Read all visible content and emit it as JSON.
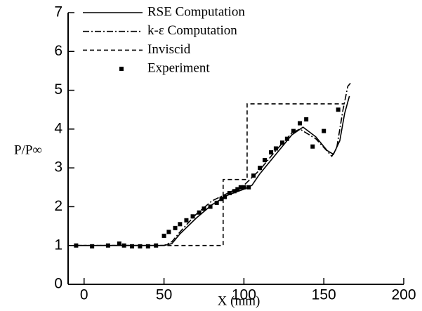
{
  "chart_data": {
    "type": "line",
    "xlabel": "X (mm)",
    "ylabel": "P/P∞",
    "xlim": [
      -10,
      200
    ],
    "xticks": [
      0,
      50,
      100,
      150,
      200
    ],
    "ylim": [
      0,
      7
    ],
    "yticks": [
      0,
      1,
      2,
      3,
      4,
      5,
      6,
      7
    ],
    "legend": "upper-left",
    "series": [
      {
        "name": "RSE Computation",
        "color": "#000000",
        "style": "solid",
        "x": [
          -5,
          50,
          55,
          60,
          70,
          80,
          90,
          100,
          105,
          110,
          120,
          130,
          137,
          145,
          152,
          156,
          160,
          163,
          166
        ],
        "values": [
          1,
          1,
          1.05,
          1.3,
          1.7,
          2.05,
          2.3,
          2.45,
          2.55,
          2.85,
          3.35,
          3.85,
          4.05,
          3.8,
          3.45,
          3.35,
          3.7,
          4.4,
          4.85
        ]
      },
      {
        "name": "k-ε Computation",
        "color": "#000000",
        "style": "dashdot",
        "x": [
          -5,
          50,
          55,
          60,
          70,
          80,
          90,
          100,
          110,
          120,
          130,
          135,
          145,
          155,
          158,
          162,
          165,
          167
        ],
        "values": [
          1,
          1,
          1.1,
          1.35,
          1.8,
          2.15,
          2.35,
          2.55,
          2.95,
          3.45,
          3.9,
          4.0,
          3.75,
          3.3,
          3.5,
          4.5,
          5.1,
          5.2
        ]
      },
      {
        "name": "Inviscid",
        "color": "#000000",
        "style": "dashed",
        "x": [
          -5,
          87,
          87,
          102,
          102,
          163
        ],
        "values": [
          1,
          1,
          2.7,
          2.7,
          4.65,
          4.65
        ]
      },
      {
        "name": "Experiment",
        "color": "#000000",
        "style": "markers",
        "x": [
          -5,
          5,
          15,
          22,
          25,
          30,
          35,
          40,
          45,
          50,
          53,
          57,
          60,
          64,
          68,
          72,
          75,
          79,
          83,
          86,
          88,
          91,
          94,
          96,
          98,
          100,
          103,
          106,
          110,
          113,
          117,
          120,
          124,
          127,
          131,
          135,
          139,
          143,
          150,
          159
        ],
        "values": [
          1,
          0.98,
          1.0,
          1.05,
          1.0,
          0.98,
          0.98,
          0.98,
          1.0,
          1.25,
          1.35,
          1.45,
          1.55,
          1.65,
          1.75,
          1.85,
          1.95,
          2.0,
          2.1,
          2.2,
          2.25,
          2.35,
          2.4,
          2.45,
          2.5,
          2.5,
          2.5,
          2.8,
          3.0,
          3.2,
          3.4,
          3.5,
          3.65,
          3.75,
          3.95,
          4.15,
          4.25,
          3.55,
          3.95,
          4.5
        ]
      }
    ]
  }
}
